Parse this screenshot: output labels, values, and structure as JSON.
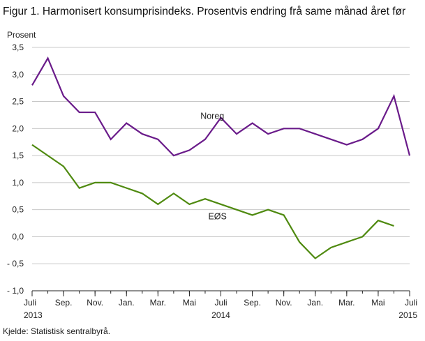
{
  "title": "Figur 1. Harmonisert konsumprisindeks. Prosentvis endring frå same månad året før",
  "source": "Kjelde: Statistisk sentralbyrå.",
  "chart_data": {
    "type": "line",
    "ylabel": "Prosent",
    "ylim": [
      -1.0,
      3.5
    ],
    "yticks": [
      -1.0,
      -0.5,
      0.0,
      0.5,
      1.0,
      1.5,
      2.0,
      2.5,
      3.0,
      3.5
    ],
    "ytick_labels": [
      "- 1,0",
      "- 0,5",
      "0,0",
      "0,5",
      "1,0",
      "1,5",
      "2,0",
      "2,5",
      "3,0",
      "3,5"
    ],
    "x": [
      "2013-07",
      "2013-08",
      "2013-09",
      "2013-10",
      "2013-11",
      "2013-12",
      "2014-01",
      "2014-02",
      "2014-03",
      "2014-04",
      "2014-05",
      "2014-06",
      "2014-07",
      "2014-08",
      "2014-09",
      "2014-10",
      "2014-11",
      "2014-12",
      "2015-01",
      "2015-02",
      "2015-03",
      "2015-04",
      "2015-05",
      "2015-06",
      "2015-07"
    ],
    "xtick_labels": [
      {
        "x": "2013-07",
        "label": "Juli",
        "year": "2013"
      },
      {
        "x": "2013-09",
        "label": "Sep.",
        "year": ""
      },
      {
        "x": "2013-11",
        "label": "Nov.",
        "year": ""
      },
      {
        "x": "2014-01",
        "label": "Jan.",
        "year": ""
      },
      {
        "x": "2014-03",
        "label": "Mar.",
        "year": ""
      },
      {
        "x": "2014-05",
        "label": "Mai",
        "year": ""
      },
      {
        "x": "2014-07",
        "label": "Juli",
        "year": "2014"
      },
      {
        "x": "2014-09",
        "label": "Sep.",
        "year": ""
      },
      {
        "x": "2014-11",
        "label": "Nov.",
        "year": ""
      },
      {
        "x": "2015-01",
        "label": "Jan.",
        "year": ""
      },
      {
        "x": "2015-03",
        "label": "Mar.",
        "year": ""
      },
      {
        "x": "2015-05",
        "label": "Mai",
        "year": ""
      },
      {
        "x": "2015-07",
        "label": "Juli",
        "year": "2015"
      }
    ],
    "grid": "horizontal",
    "series": [
      {
        "name": "Noreg",
        "color": "#6a1b8a",
        "values": [
          2.8,
          3.3,
          2.6,
          2.3,
          2.3,
          1.8,
          2.1,
          1.9,
          1.8,
          1.5,
          1.6,
          1.8,
          2.2,
          1.9,
          2.1,
          1.9,
          2.0,
          2.0,
          1.9,
          1.8,
          1.7,
          1.8,
          2.0,
          2.6,
          1.5
        ]
      },
      {
        "name": "EØS",
        "color": "#4f8a10",
        "values": [
          1.7,
          1.5,
          1.3,
          0.9,
          1.0,
          1.0,
          0.9,
          0.8,
          0.6,
          0.8,
          0.6,
          0.7,
          0.6,
          0.5,
          0.4,
          0.5,
          0.4,
          -0.1,
          -0.4,
          -0.2,
          -0.1,
          0.0,
          0.3,
          0.2,
          null
        ]
      }
    ]
  }
}
